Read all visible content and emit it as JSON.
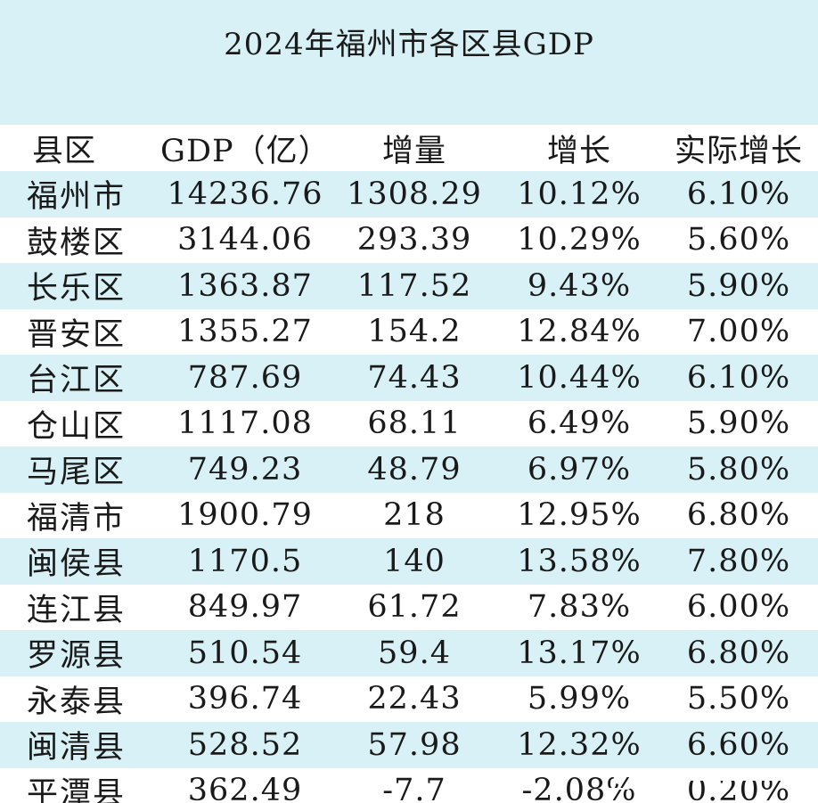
{
  "title": "2024年福州市各区县GDP",
  "columns": [
    "县区",
    "GDP（亿）",
    "增量",
    "增长",
    "实际增长"
  ],
  "rows": [
    [
      "福州市",
      "14236.76",
      "1308.29",
      "10.12%",
      "6.10%"
    ],
    [
      "鼓楼区",
      "3144.06",
      "293.39",
      "10.29%",
      "5.60%"
    ],
    [
      "长乐区",
      "1363.87",
      "117.52",
      "9.43%",
      "5.90%"
    ],
    [
      "晋安区",
      "1355.27",
      "154.2",
      "12.84%",
      "7.00%"
    ],
    [
      "台江区",
      "787.69",
      "74.43",
      "10.44%",
      "6.10%"
    ],
    [
      "仓山区",
      "1117.08",
      "68.11",
      "6.49%",
      "5.90%"
    ],
    [
      "马尾区",
      "749.23",
      "48.79",
      "6.97%",
      "5.80%"
    ],
    [
      "福清市",
      "1900.79",
      "218",
      "12.95%",
      "6.80%"
    ],
    [
      "闽侯县",
      "1170.5",
      "140",
      "13.58%",
      "7.80%"
    ],
    [
      "连江县",
      "849.97",
      "61.72",
      "7.83%",
      "6.00%"
    ],
    [
      "罗源县",
      "510.54",
      "59.4",
      "13.17%",
      "6.80%"
    ],
    [
      "永泰县",
      "396.74",
      "22.43",
      "5.99%",
      "5.50%"
    ],
    [
      "闽清县",
      "528.52",
      "57.98",
      "12.32%",
      "6.60%"
    ],
    [
      "平潭县",
      "362.49",
      "-7.7",
      "-2.08%",
      "0.20%"
    ]
  ],
  "colors": {
    "band": "#d8f1f6",
    "text": "#1a1a1a",
    "white": "#ffffff"
  },
  "watermark": {
    "icon": "watermark-logo-icon"
  }
}
